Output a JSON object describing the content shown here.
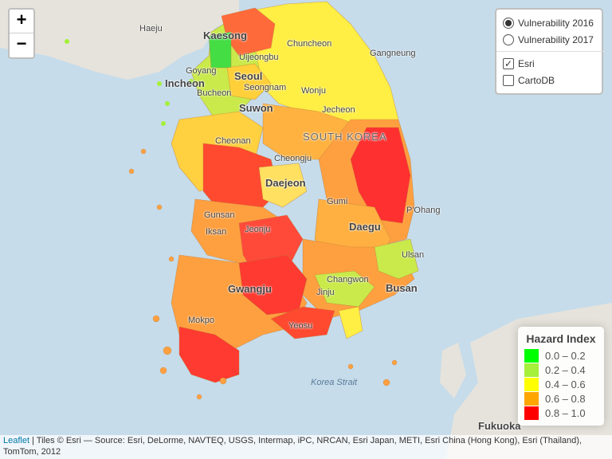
{
  "zoom": {
    "in_label": "+",
    "out_label": "−"
  },
  "layers": {
    "base_options": [
      {
        "label": "Vulnerability 2016",
        "selected": true
      },
      {
        "label": "Vulnerability 2017",
        "selected": false
      }
    ],
    "overlays": [
      {
        "label": "Esri",
        "checked": true
      },
      {
        "label": "CartoDB",
        "checked": false
      }
    ]
  },
  "legend": {
    "title": "Hazard Index",
    "items": [
      {
        "range": "0.0 – 0.2",
        "color": "#00ff00"
      },
      {
        "range": "0.2 – 0.4",
        "color": "#a6ef3a"
      },
      {
        "range": "0.4 – 0.6",
        "color": "#ffff00"
      },
      {
        "range": "0.6 – 0.8",
        "color": "#ffa500"
      },
      {
        "range": "0.8 – 1.0",
        "color": "#ff0000"
      }
    ]
  },
  "attribution": {
    "leaflet": "Leaflet",
    "text": " | Tiles © Esri — Source: Esri, DeLorme, NAVTEQ, USGS, Intermap, iPC, NRCAN, Esri Japan, METI, Esri China (Hong Kong), Esri (Thailand), TomTom, 2012"
  },
  "places": {
    "haeju": "Haeju",
    "kaesong": "Kaesong",
    "chuncheon": "Chuncheon",
    "uijeongbu": "Uijeongbu",
    "gangneung": "Gangneung",
    "goyang": "Goyang",
    "seoul": "Seoul",
    "incheon": "Incheon",
    "seongnam": "Seongnam",
    "bucheon": "Bucheon",
    "wonju": "Wonju",
    "suwon": "Suwon",
    "jecheon": "Jecheon",
    "south_korea": "SOUTH KOREA",
    "cheonan": "Cheonan",
    "cheongju": "Cheongju",
    "daejeon": "Daejeon",
    "gumi": "Gumi",
    "pohang": "P'Ohang",
    "gunsan": "Gunsan",
    "jeonju": "Jeonju",
    "daegu": "Daegu",
    "iksan": "Iksan",
    "ulsan": "Ulsan",
    "changwon": "Changwon",
    "gwangju": "Gwangju",
    "busan": "Busan",
    "jinju": "Jinju",
    "mokpo": "Mokpo",
    "yeosu": "Yeosu",
    "korea_strait": "Korea Strait",
    "fukuoka": "Fukuoka"
  }
}
